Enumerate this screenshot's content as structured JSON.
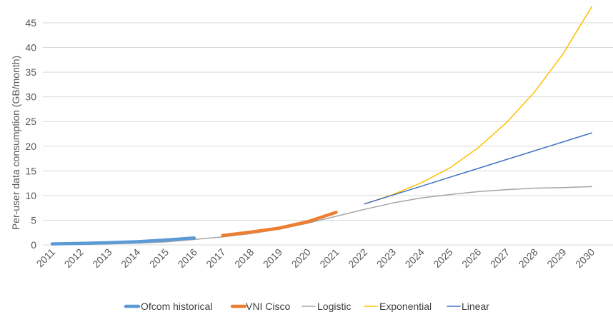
{
  "chart_data": {
    "type": "line",
    "title": "",
    "xlabel": "",
    "ylabel": "Per-user data consumption (GB/month)",
    "ylim": [
      0,
      45
    ],
    "yticks": [
      0,
      5,
      10,
      15,
      20,
      25,
      30,
      35,
      40,
      45
    ],
    "grid": true,
    "legend": "bottom",
    "categories": [
      "2011",
      "2012",
      "2013",
      "2014",
      "2015",
      "2016",
      "2017",
      "2018",
      "2019",
      "2020",
      "2021",
      "2022",
      "2023",
      "2024",
      "2025",
      "2026",
      "2027",
      "2028",
      "2029",
      "2030"
    ],
    "series": [
      {
        "name": "Ofcom historical",
        "color": "#5B9BD5",
        "width": 4.5,
        "points": [
          [
            "2011",
            0.2
          ],
          [
            "2012",
            0.3
          ],
          [
            "2013",
            0.45
          ],
          [
            "2014",
            0.65
          ],
          [
            "2015",
            1.0
          ],
          [
            "2016",
            1.4
          ]
        ]
      },
      {
        "name": "VNI Cisco",
        "color": "#ED7D31",
        "width": 4.5,
        "points": [
          [
            "2017",
            1.9
          ],
          [
            "2018",
            2.6
          ],
          [
            "2019",
            3.4
          ],
          [
            "2020",
            4.7
          ],
          [
            "2021",
            6.6
          ]
        ]
      },
      {
        "name": "Logistic",
        "color": "#A5A5A5",
        "width": 1.5,
        "points": [
          [
            "2011",
            0.05
          ],
          [
            "2012",
            0.1
          ],
          [
            "2013",
            0.2
          ],
          [
            "2014",
            0.35
          ],
          [
            "2015",
            0.6
          ],
          [
            "2016",
            1.1
          ],
          [
            "2017",
            1.6
          ],
          [
            "2018",
            2.3
          ],
          [
            "2019",
            3.2
          ],
          [
            "2020",
            4.4
          ],
          [
            "2021",
            5.8
          ],
          [
            "2022",
            7.2
          ],
          [
            "2023",
            8.5
          ],
          [
            "2024",
            9.5
          ],
          [
            "2025",
            10.2
          ],
          [
            "2026",
            10.8
          ],
          [
            "2027",
            11.2
          ],
          [
            "2028",
            11.5
          ],
          [
            "2029",
            11.6
          ],
          [
            "2030",
            11.8
          ]
        ]
      },
      {
        "name": "Exponential",
        "color": "#FFC000",
        "width": 1.5,
        "points": [
          [
            "2022",
            8.3
          ],
          [
            "2023",
            10.2
          ],
          [
            "2024",
            12.6
          ],
          [
            "2025",
            15.6
          ],
          [
            "2026",
            19.7
          ],
          [
            "2027",
            24.8
          ],
          [
            "2028",
            31.1
          ],
          [
            "2029",
            38.8
          ],
          [
            "2030",
            48.3
          ]
        ]
      },
      {
        "name": "Linear",
        "color": "#4472C4",
        "width": 1.5,
        "points": [
          [
            "2022",
            8.3
          ],
          [
            "2023",
            10.1
          ],
          [
            "2024",
            11.9
          ],
          [
            "2025",
            13.7
          ],
          [
            "2026",
            15.5
          ],
          [
            "2027",
            17.3
          ],
          [
            "2028",
            19.1
          ],
          [
            "2029",
            20.9
          ],
          [
            "2030",
            22.7
          ]
        ]
      }
    ]
  }
}
